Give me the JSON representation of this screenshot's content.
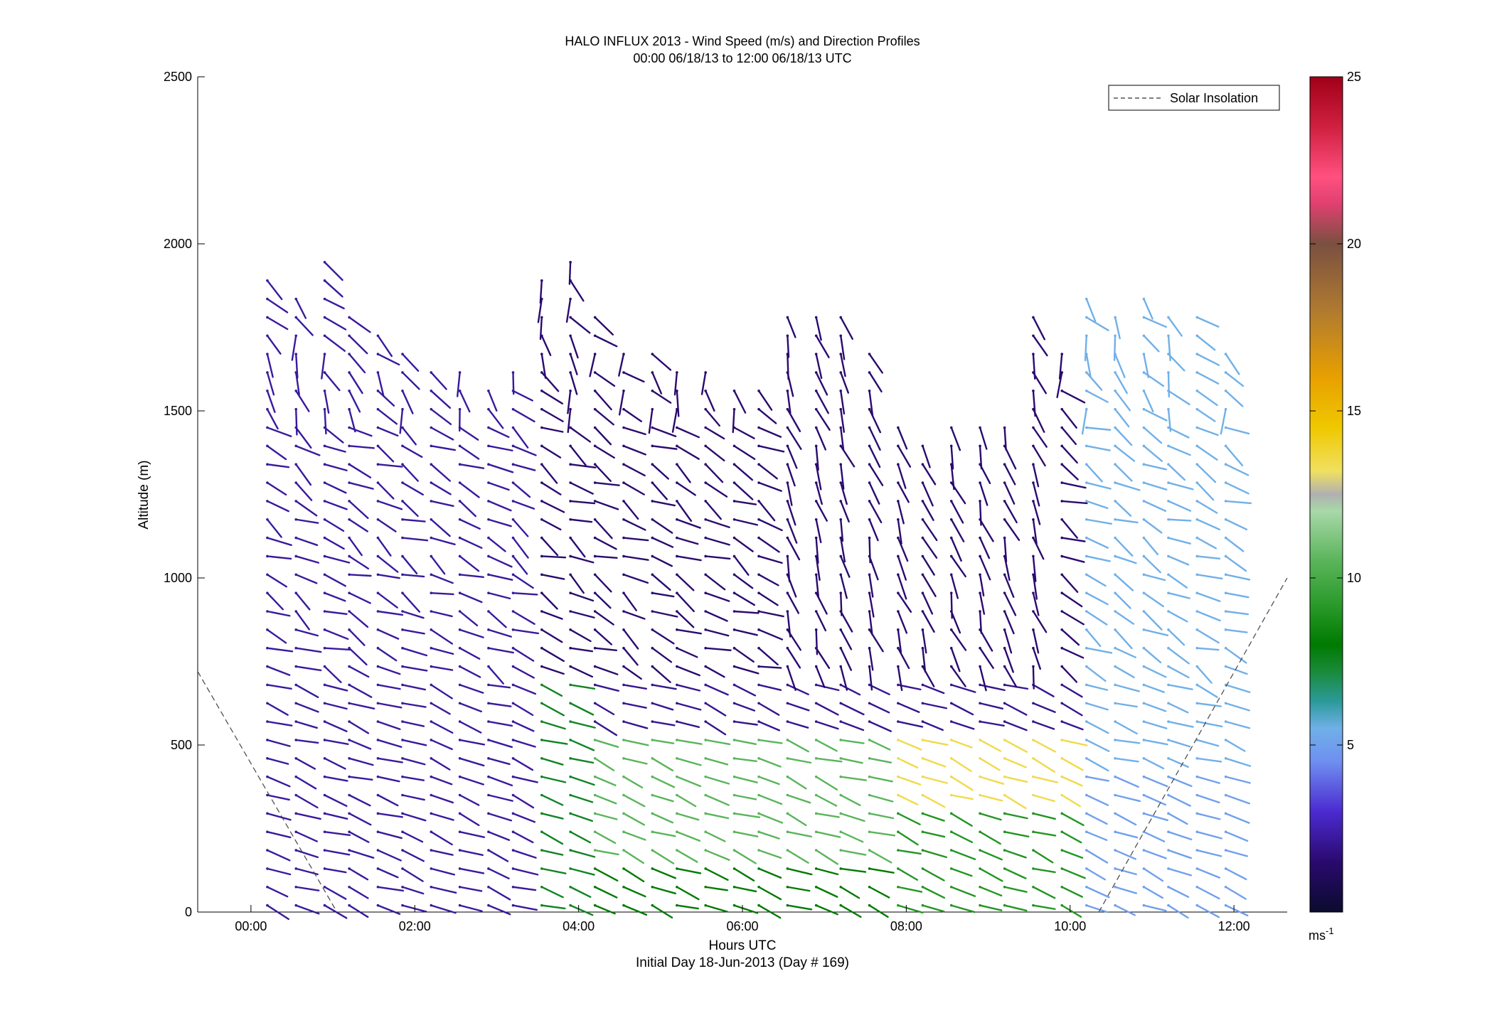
{
  "chart_data": {
    "type": "wind-barb-profile",
    "title": "HALO INFLUX 2013 - Wind Speed (m/s) and Direction Profiles",
    "subtitle": "00:00 06/18/13 to 12:00 06/18/13  UTC",
    "xlabel": "Hours UTC",
    "xlabel2": "Initial Day 18-Jun-2013 (Day # 169)",
    "ylabel": "Altitude (m)",
    "xlim": [
      -0.65,
      12.65
    ],
    "ylim": [
      0,
      2500
    ],
    "x_ticks": [
      0,
      2,
      4,
      6,
      8,
      10,
      12
    ],
    "x_tick_labels": [
      "00:00",
      "02:00",
      "04:00",
      "06:00",
      "08:00",
      "10:00",
      "12:00"
    ],
    "y_ticks": [
      0,
      500,
      1000,
      1500,
      2000,
      2500
    ],
    "y_tick_labels": [
      "0",
      "500",
      "1000",
      "1500",
      "2000",
      "2500"
    ],
    "legend": {
      "entries": [
        "Solar Insolation"
      ],
      "placement": "top-right",
      "line_style": "dashed"
    },
    "solar_insolation": [
      {
        "x": [
          -0.65,
          1.05
        ],
        "y": [
          720,
          0
        ]
      },
      {
        "x": [
          10.35,
          12.65
        ],
        "y": [
          0,
          1000
        ]
      }
    ],
    "colorbar": {
      "range": [
        0,
        25
      ],
      "ticks": [
        5,
        10,
        15,
        20,
        25
      ],
      "unit_label": "ms",
      "unit_exponent": "-1",
      "stops": [
        {
          "v": 0,
          "c": "#0b0b2e"
        },
        {
          "v": 1.5,
          "c": "#2a0a6e"
        },
        {
          "v": 3,
          "c": "#4b2ad0"
        },
        {
          "v": 4.5,
          "c": "#6f8ff0"
        },
        {
          "v": 5.5,
          "c": "#70b0e8"
        },
        {
          "v": 6.3,
          "c": "#2b9a9a"
        },
        {
          "v": 7.2,
          "c": "#1a8a3a"
        },
        {
          "v": 8,
          "c": "#007a00"
        },
        {
          "v": 9.2,
          "c": "#2a9a2a"
        },
        {
          "v": 10.5,
          "c": "#5ab45a"
        },
        {
          "v": 12,
          "c": "#a8d8a8"
        },
        {
          "v": 12.5,
          "c": "#b0b0b0"
        },
        {
          "v": 13.2,
          "c": "#f0e060"
        },
        {
          "v": 14.5,
          "c": "#f0c800"
        },
        {
          "v": 16,
          "c": "#e8a000"
        },
        {
          "v": 18,
          "c": "#b07a30"
        },
        {
          "v": 20,
          "c": "#7a5040"
        },
        {
          "v": 21.2,
          "c": "#e04070"
        },
        {
          "v": 22,
          "c": "#ff5080"
        },
        {
          "v": 23.5,
          "c": "#d02040"
        },
        {
          "v": 25,
          "c": "#a00018"
        }
      ]
    },
    "profiles": [
      {
        "hour": 0.2,
        "top": 1920
      },
      {
        "hour": 0.55,
        "top": 1850
      },
      {
        "hour": 0.9,
        "top": 1950
      },
      {
        "hour": 1.2,
        "top": 1820
      },
      {
        "hour": 1.55,
        "top": 1760
      },
      {
        "hour": 1.85,
        "top": 1700
      },
      {
        "hour": 2.2,
        "top": 1650
      },
      {
        "hour": 2.55,
        "top": 1620
      },
      {
        "hour": 2.9,
        "top": 1600
      },
      {
        "hour": 3.2,
        "top": 1640
      },
      {
        "hour": 3.55,
        "top": 1930
      },
      {
        "hour": 3.9,
        "top": 1950
      },
      {
        "hour": 4.2,
        "top": 1780
      },
      {
        "hour": 4.55,
        "top": 1700
      },
      {
        "hour": 4.9,
        "top": 1680
      },
      {
        "hour": 5.2,
        "top": 1650
      },
      {
        "hour": 5.55,
        "top": 1620
      },
      {
        "hour": 5.9,
        "top": 1610
      },
      {
        "hour": 6.2,
        "top": 1600
      },
      {
        "hour": 6.55,
        "top": 1780
      },
      {
        "hour": 6.9,
        "top": 1800
      },
      {
        "hour": 7.2,
        "top": 1830
      },
      {
        "hour": 7.55,
        "top": 1700
      },
      {
        "hour": 7.9,
        "top": 1460
      },
      {
        "hour": 8.2,
        "top": 1440
      },
      {
        "hour": 8.55,
        "top": 1450
      },
      {
        "hour": 8.9,
        "top": 1460
      },
      {
        "hour": 9.2,
        "top": 1500
      },
      {
        "hour": 9.55,
        "top": 1780
      },
      {
        "hour": 9.9,
        "top": 1680
      },
      {
        "hour": 10.2,
        "top": 1880
      },
      {
        "hour": 10.55,
        "top": 1820
      },
      {
        "hour": 10.9,
        "top": 1870
      },
      {
        "hour": 11.2,
        "top": 1830
      },
      {
        "hour": 11.55,
        "top": 1820
      },
      {
        "hour": 11.9,
        "top": 1700
      }
    ],
    "barb_spacing_m": 55,
    "speed_regions": [
      {
        "x": [
          0,
          3.4
        ],
        "y": [
          0,
          2500
        ],
        "speed": 2.2,
        "note": "early night"
      },
      {
        "x": [
          3.4,
          4.2
        ],
        "y": [
          0,
          700
        ],
        "speed": 7.5
      },
      {
        "x": [
          4.2,
          7.8
        ],
        "y": [
          150,
          550
        ],
        "speed": 10.5
      },
      {
        "x": [
          4.2,
          7.8
        ],
        "y": [
          0,
          150
        ],
        "speed": 8
      },
      {
        "x": [
          7.8,
          10
        ],
        "y": [
          350,
          550
        ],
        "speed": 13.5
      },
      {
        "x": [
          7.8,
          10
        ],
        "y": [
          0,
          350
        ],
        "speed": 9
      },
      {
        "x": [
          10,
          12
        ],
        "y": [
          0,
          450
        ],
        "speed": 5
      },
      {
        "x": [
          10,
          12
        ],
        "y": [
          450,
          2000
        ],
        "speed": 5.5
      },
      {
        "x": [
          3.4,
          10
        ],
        "y": [
          700,
          2500
        ],
        "speed": 1.5
      }
    ]
  }
}
